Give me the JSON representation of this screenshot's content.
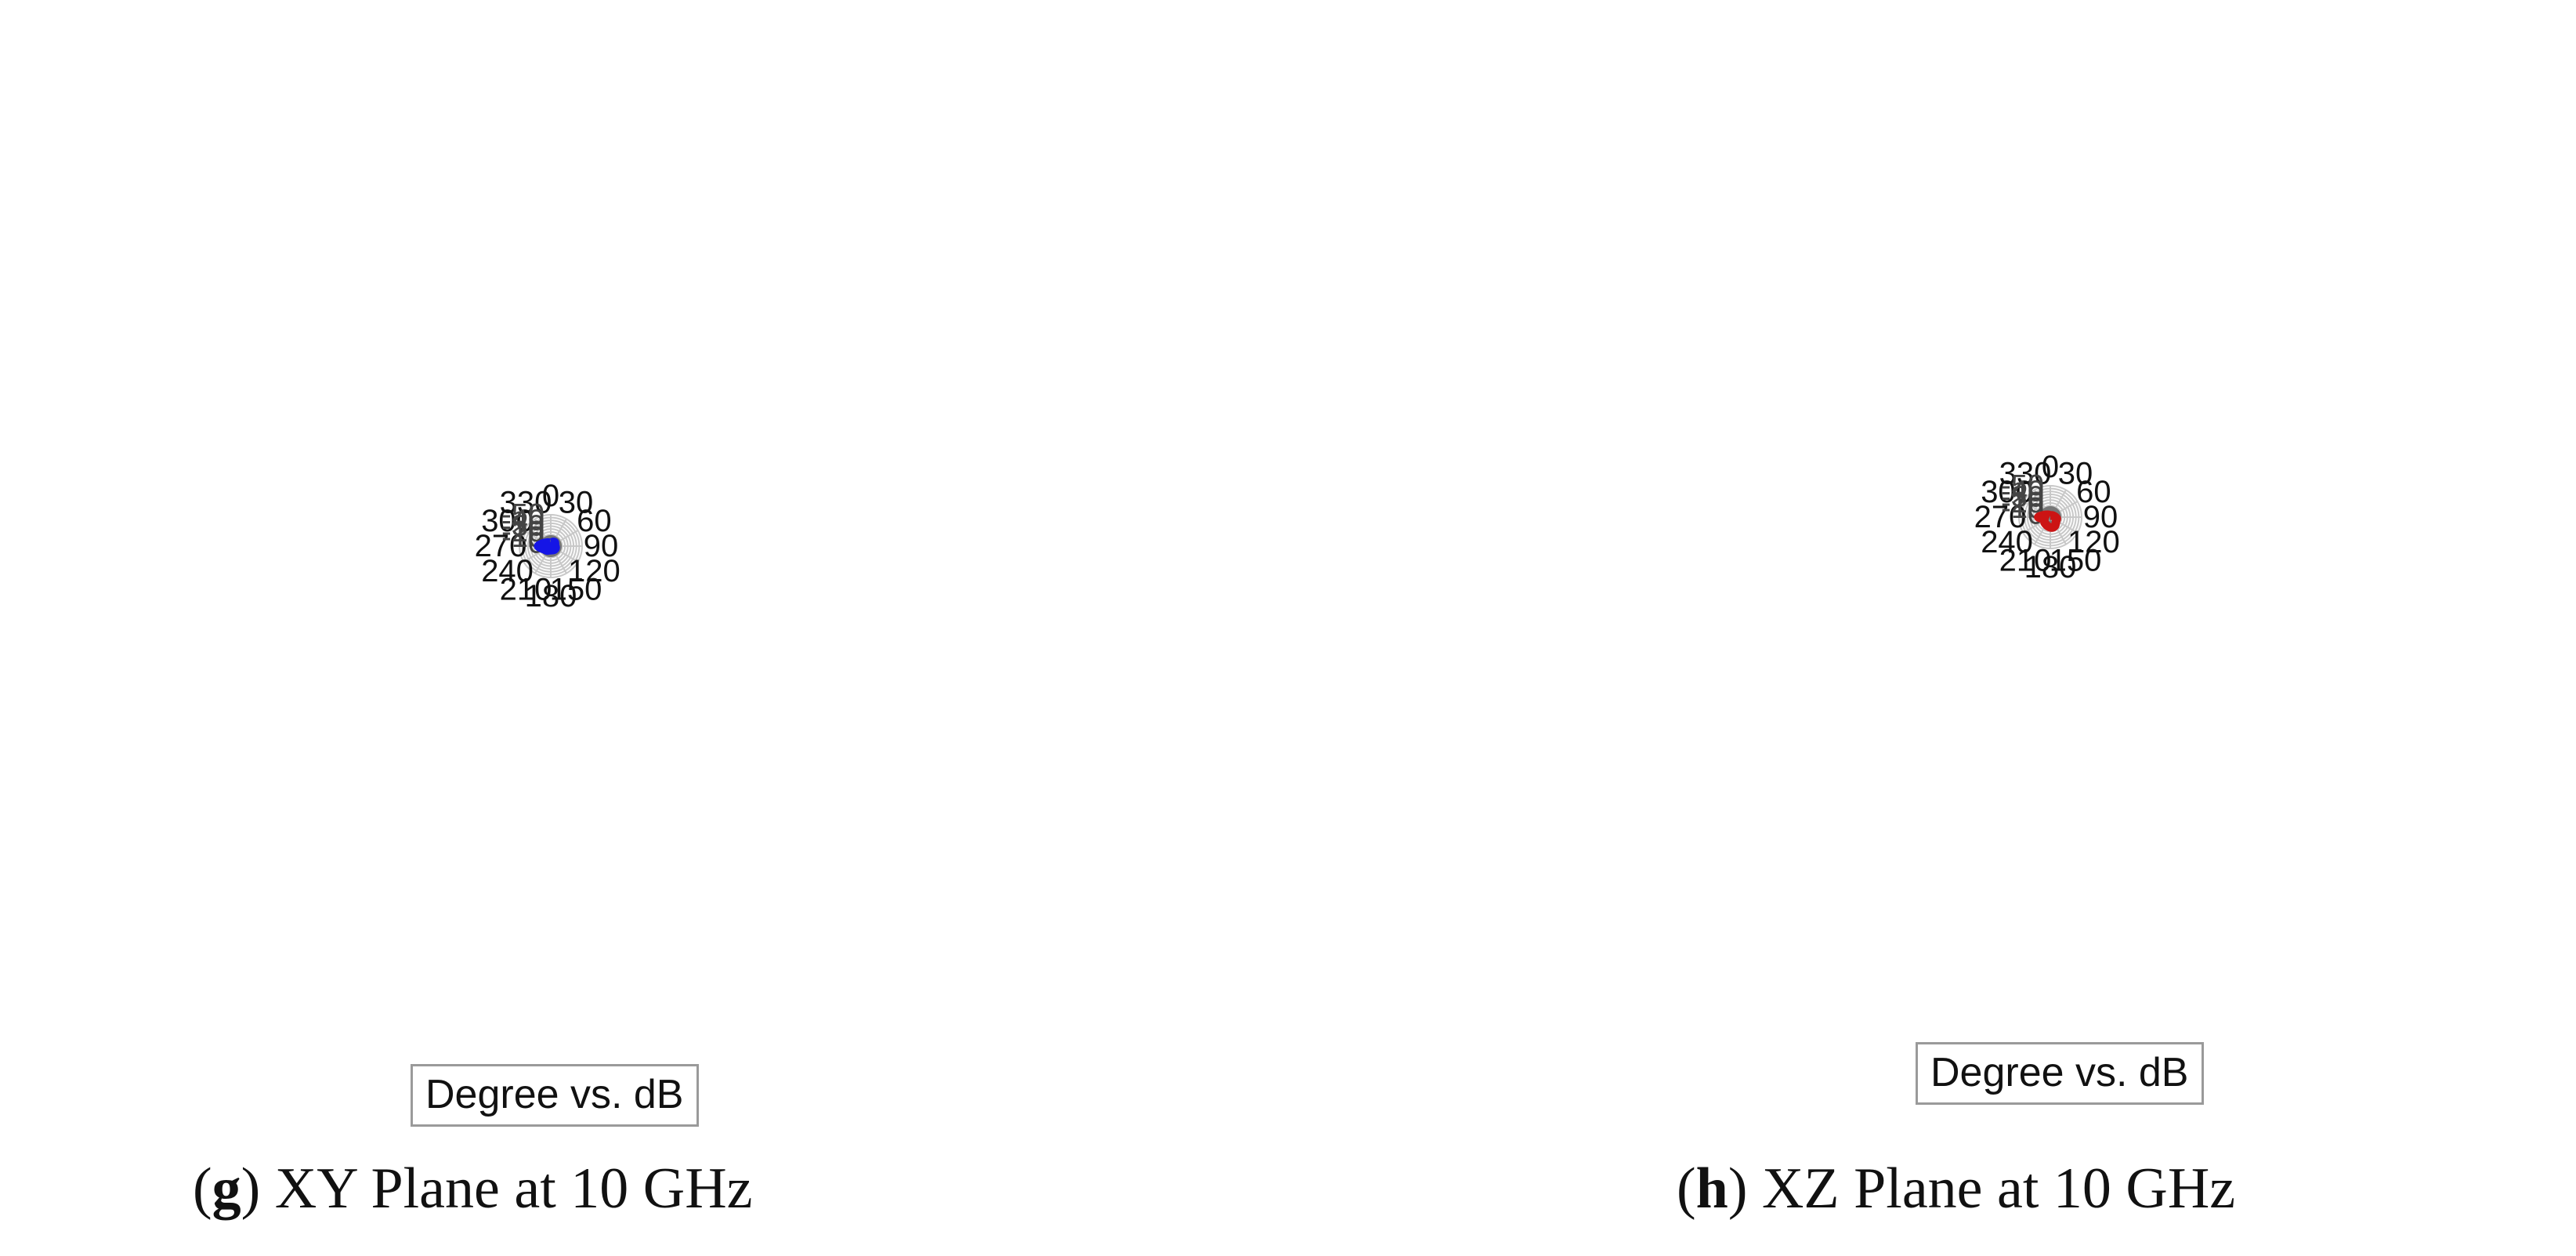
{
  "panels": [
    {
      "caption": {
        "letter": "g",
        "text": "XY Plane at 10 GHz"
      },
      "legend_text": "Degree vs. dB"
    },
    {
      "caption": {
        "letter": "h",
        "text": "XZ Plane at 10 GHz"
      },
      "legend_text": "Degree vs. dB"
    }
  ],
  "chart_data": [
    {
      "type": "polar-line",
      "title": "",
      "angle_unit": "degree",
      "angle_direction": "clockwise",
      "angle_zero": "top",
      "angle_ticks": [
        0,
        30,
        60,
        90,
        120,
        150,
        180,
        210,
        240,
        270,
        300,
        330
      ],
      "radial_ticks": [
        0,
        -10,
        -20,
        -30,
        -40,
        -50
      ],
      "rlim": [
        -50,
        5
      ],
      "grid": true,
      "legend": {
        "text": "Degree vs. dB",
        "placement": "bottom"
      },
      "series": [
        {
          "color": "#1515e6",
          "points": [
            [
              0,
              -1
            ],
            [
              15,
              -1.8
            ],
            [
              30,
              -3.5
            ],
            [
              45,
              -4.8
            ],
            [
              60,
              -3.5
            ],
            [
              75,
              -2.6
            ],
            [
              90,
              -3
            ],
            [
              105,
              -3.8
            ],
            [
              120,
              -4.2
            ],
            [
              135,
              -3.8
            ],
            [
              150,
              -3
            ],
            [
              165,
              -2.2
            ],
            [
              180,
              -2
            ],
            [
              195,
              -2.6
            ],
            [
              210,
              -3.8
            ],
            [
              225,
              -5.5
            ],
            [
              240,
              -7.2
            ],
            [
              255,
              -11
            ],
            [
              270,
              -17
            ],
            [
              285,
              -11
            ],
            [
              300,
              -6.5
            ],
            [
              315,
              -3.8
            ],
            [
              330,
              -2.2
            ],
            [
              345,
              -1.3
            ]
          ]
        }
      ]
    },
    {
      "type": "polar-line",
      "title": "",
      "angle_unit": "degree",
      "angle_direction": "clockwise",
      "angle_zero": "top",
      "angle_ticks": [
        0,
        30,
        60,
        90,
        120,
        150,
        180,
        210,
        240,
        270,
        300,
        330
      ],
      "radial_ticks": [
        0,
        -10,
        -20,
        -30,
        -40,
        -50
      ],
      "rlim": [
        -50,
        5
      ],
      "grid": true,
      "legend": {
        "text": "Degree vs. dB",
        "placement": "bottom"
      },
      "series": [
        {
          "color": "#cc1414",
          "points": [
            [
              0,
              2.5
            ],
            [
              15,
              2.3
            ],
            [
              30,
              1.5
            ],
            [
              45,
              0.5
            ],
            [
              60,
              -0.5
            ],
            [
              75,
              -1.8
            ],
            [
              90,
              -4.5
            ],
            [
              105,
              -7
            ],
            [
              120,
              -7
            ],
            [
              135,
              -8.8
            ],
            [
              150,
              -12
            ],
            [
              165,
              -13.5
            ],
            [
              180,
              -13
            ],
            [
              195,
              -11.5
            ],
            [
              210,
              -10
            ],
            [
              225,
              -9
            ],
            [
              240,
              -7
            ],
            [
              255,
              -8
            ],
            [
              270,
              -16
            ],
            [
              285,
              -8
            ],
            [
              300,
              -3
            ],
            [
              315,
              -0.8
            ],
            [
              330,
              0.5
            ],
            [
              345,
              1.8
            ]
          ]
        }
      ]
    }
  ]
}
